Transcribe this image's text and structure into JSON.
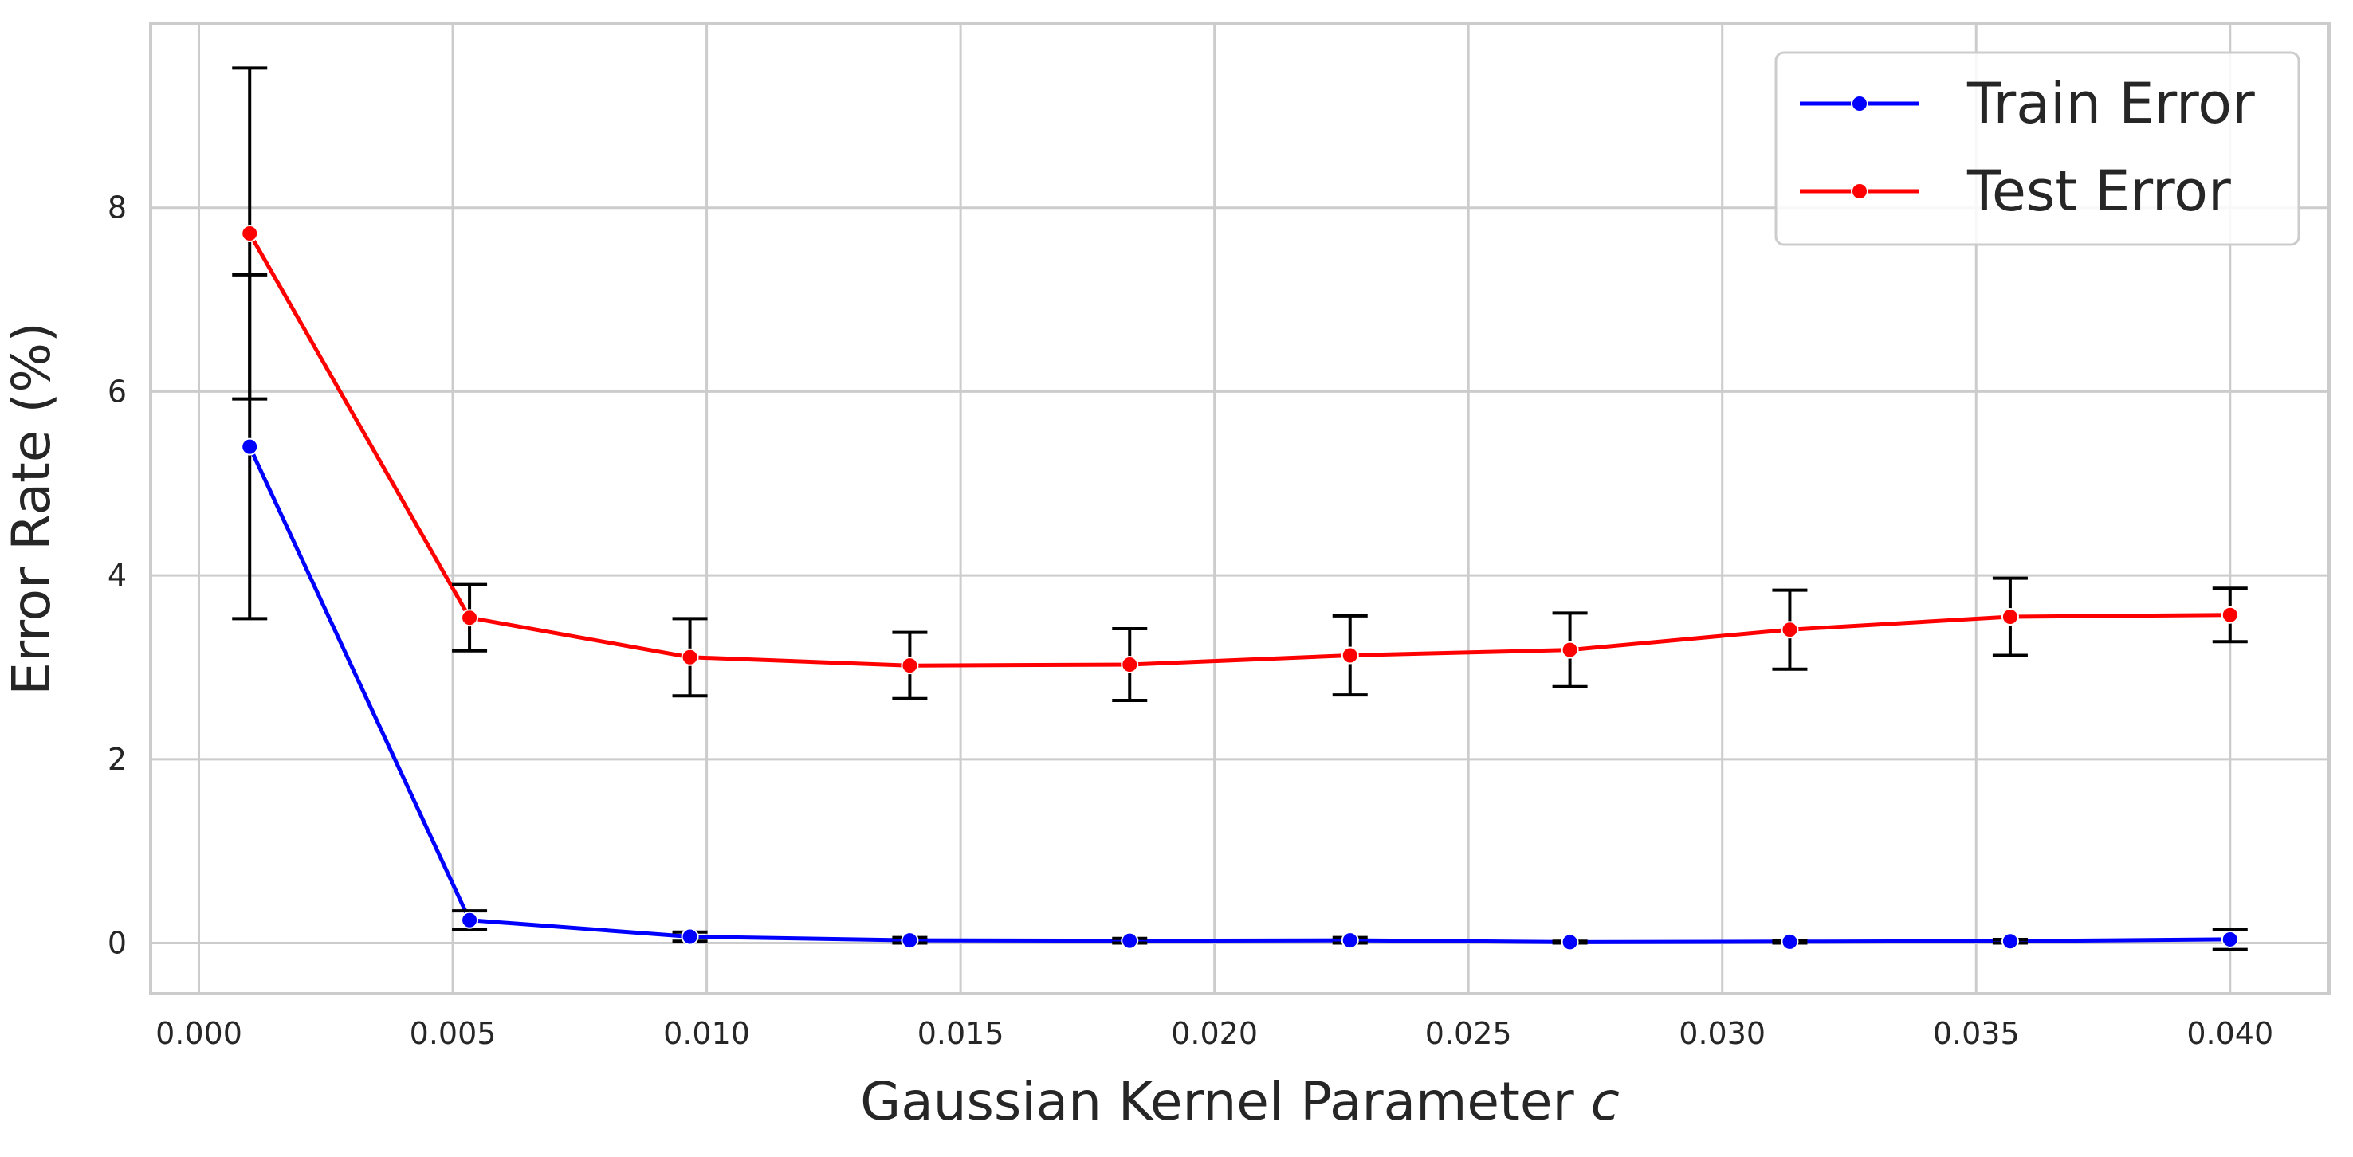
{
  "chart_data": {
    "type": "line",
    "title": "",
    "xlabel": "Gaussian Kernel Parameter ",
    "xlabel_symbol": "c",
    "ylabel": "Error Rate (%)",
    "xlim": [
      -0.00095,
      0.04195
    ],
    "ylim": [
      -0.55,
      10.0
    ],
    "xticks": [
      0.0,
      0.005,
      0.01,
      0.015,
      0.02,
      0.025,
      0.03,
      0.035,
      0.04
    ],
    "xtick_labels": [
      "0.000",
      "0.005",
      "0.010",
      "0.015",
      "0.020",
      "0.025",
      "0.030",
      "0.035",
      "0.040"
    ],
    "yticks": [
      0,
      2,
      4,
      6,
      8
    ],
    "ytick_labels": [
      "0",
      "2",
      "4",
      "6",
      "8"
    ],
    "grid": true,
    "legend_position": "top-right",
    "x": [
      0.001,
      0.00533,
      0.00967,
      0.014,
      0.01833,
      0.02267,
      0.027,
      0.03133,
      0.03567,
      0.04
    ],
    "series": [
      {
        "name": "Train Error",
        "color": "#0000ff",
        "marker": "circle",
        "values": [
          5.4,
          0.25,
          0.07,
          0.03,
          0.025,
          0.03,
          0.01,
          0.015,
          0.02,
          0.04
        ],
        "errors": [
          1.87,
          0.1,
          0.05,
          0.03,
          0.025,
          0.03,
          0.01,
          0.015,
          0.02,
          0.11
        ]
      },
      {
        "name": "Test Error",
        "color": "#ff0000",
        "marker": "circle",
        "values": [
          7.72,
          3.54,
          3.11,
          3.02,
          3.03,
          3.13,
          3.19,
          3.41,
          3.55,
          3.57
        ],
        "errors": [
          1.8,
          0.36,
          0.42,
          0.36,
          0.39,
          0.43,
          0.4,
          0.43,
          0.42,
          0.29
        ]
      }
    ],
    "errorbar_color": "#000000"
  }
}
